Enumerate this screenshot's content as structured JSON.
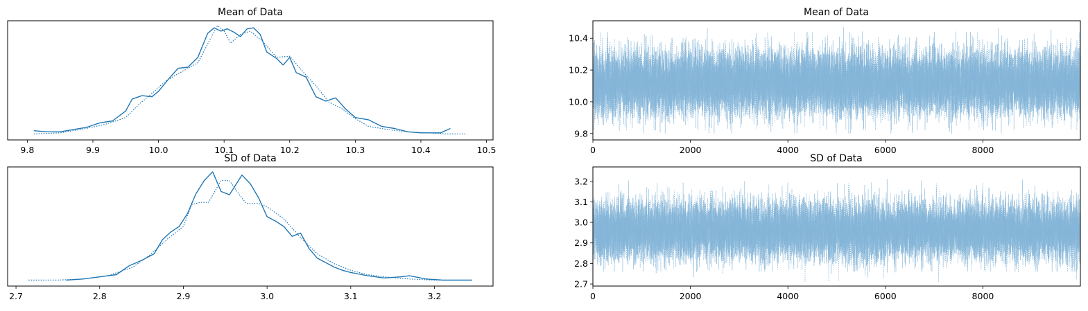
{
  "colors": {
    "kde": "#1f77b4",
    "trace": "#7fb1d6",
    "axis": "#000000"
  },
  "chart_data": [
    {
      "type": "line",
      "subtype": "density",
      "title": "Mean of Data",
      "xlim": [
        9.77,
        10.51
      ],
      "xticks": [
        "9.8",
        "9.9",
        "10.0",
        "10.1",
        "10.2",
        "10.3",
        "10.4",
        "10.5"
      ],
      "yticks": [],
      "series": [
        {
          "style": "solid",
          "x": [
            9.81,
            9.83,
            9.85,
            9.87,
            9.89,
            9.91,
            9.93,
            9.95,
            9.96,
            9.975,
            9.99,
            10.0,
            10.015,
            10.03,
            10.045,
            10.06,
            10.075,
            10.085,
            10.095,
            10.105,
            10.115,
            10.125,
            10.135,
            10.145,
            10.155,
            10.165,
            10.18,
            10.19,
            10.2,
            10.21,
            10.225,
            10.24,
            10.255,
            10.27,
            10.285,
            10.3,
            10.32,
            10.34,
            10.36,
            10.38,
            10.4,
            10.43,
            10.445
          ],
          "y": [
            0.04,
            0.03,
            0.03,
            0.05,
            0.07,
            0.11,
            0.13,
            0.22,
            0.33,
            0.36,
            0.35,
            0.4,
            0.51,
            0.61,
            0.62,
            0.71,
            0.93,
            0.98,
            0.95,
            0.97,
            0.94,
            0.9,
            0.97,
            0.98,
            0.92,
            0.76,
            0.7,
            0.64,
            0.71,
            0.57,
            0.53,
            0.35,
            0.31,
            0.34,
            0.24,
            0.16,
            0.14,
            0.08,
            0.06,
            0.03,
            0.02,
            0.02,
            0.06
          ]
        },
        {
          "style": "dotted",
          "x": [
            9.81,
            9.85,
            9.89,
            9.92,
            9.95,
            9.97,
            9.99,
            10.01,
            10.03,
            10.06,
            10.08,
            10.09,
            10.1,
            10.11,
            10.125,
            10.14,
            10.16,
            10.18,
            10.2,
            10.22,
            10.24,
            10.26,
            10.28,
            10.3,
            10.32,
            10.35,
            10.38,
            10.41,
            10.44,
            10.47
          ],
          "y": [
            0.01,
            0.02,
            0.06,
            0.1,
            0.16,
            0.28,
            0.38,
            0.49,
            0.56,
            0.66,
            0.89,
            1.0,
            0.95,
            0.84,
            0.92,
            0.95,
            0.85,
            0.71,
            0.72,
            0.58,
            0.45,
            0.3,
            0.24,
            0.15,
            0.08,
            0.05,
            0.03,
            0.02,
            0.01,
            0.01
          ]
        }
      ]
    },
    {
      "type": "line",
      "subtype": "trace",
      "title": "Mean of Data",
      "xlim": [
        0,
        9999
      ],
      "ylim": [
        9.76,
        10.51
      ],
      "xticks": [
        "0",
        "2000",
        "4000",
        "6000",
        "8000"
      ],
      "yticks": [
        "9.8",
        "10.0",
        "10.2",
        "10.4"
      ],
      "series": [
        {
          "style": "solid",
          "n": 10000,
          "mean": 10.12,
          "sd": 0.1,
          "min": 9.8,
          "max": 10.47
        },
        {
          "style": "dotted",
          "n": 10000,
          "mean": 10.12,
          "sd": 0.1,
          "min": 9.82,
          "max": 10.44
        }
      ]
    },
    {
      "type": "line",
      "subtype": "density",
      "title": "SD of Data",
      "xlim": [
        2.69,
        3.27
      ],
      "xticks": [
        "2.7",
        "2.8",
        "2.9",
        "3.0",
        "3.1",
        "3.2"
      ],
      "yticks": [],
      "series": [
        {
          "style": "solid",
          "x": [
            2.76,
            2.78,
            2.8,
            2.82,
            2.835,
            2.85,
            2.865,
            2.875,
            2.885,
            2.895,
            2.905,
            2.915,
            2.925,
            2.935,
            2.945,
            2.955,
            2.96,
            2.97,
            2.98,
            2.99,
            3.0,
            3.01,
            3.02,
            3.03,
            3.04,
            3.05,
            3.06,
            3.07,
            3.08,
            3.09,
            3.1,
            3.12,
            3.14,
            3.16,
            3.17,
            3.19,
            3.21,
            3.245
          ],
          "y": [
            0.01,
            0.02,
            0.04,
            0.06,
            0.14,
            0.19,
            0.25,
            0.38,
            0.45,
            0.5,
            0.62,
            0.8,
            0.92,
            1.0,
            0.82,
            0.79,
            0.85,
            0.97,
            0.89,
            0.76,
            0.59,
            0.55,
            0.5,
            0.41,
            0.44,
            0.3,
            0.21,
            0.17,
            0.13,
            0.1,
            0.08,
            0.05,
            0.03,
            0.04,
            0.05,
            0.02,
            0.01,
            0.01
          ]
        },
        {
          "style": "dotted",
          "x": [
            2.715,
            2.75,
            2.78,
            2.81,
            2.84,
            2.86,
            2.88,
            2.9,
            2.91,
            2.92,
            2.93,
            2.945,
            2.955,
            2.965,
            2.975,
            2.99,
            3.0,
            3.02,
            3.04,
            3.06,
            3.08,
            3.1,
            3.12,
            3.14,
            3.17,
            3.2,
            3.245
          ],
          "y": [
            0.01,
            0.01,
            0.02,
            0.05,
            0.13,
            0.24,
            0.38,
            0.5,
            0.7,
            0.72,
            0.72,
            0.92,
            0.92,
            0.81,
            0.71,
            0.71,
            0.68,
            0.57,
            0.4,
            0.25,
            0.16,
            0.1,
            0.06,
            0.04,
            0.02,
            0.01,
            0.01
          ]
        }
      ]
    },
    {
      "type": "line",
      "subtype": "trace",
      "title": "SD of Data",
      "xlim": [
        0,
        9999
      ],
      "ylim": [
        2.69,
        3.27
      ],
      "xticks": [
        "0",
        "2000",
        "4000",
        "6000",
        "8000"
      ],
      "yticks": [
        "2.7",
        "2.8",
        "2.9",
        "3.0",
        "3.1",
        "3.2"
      ],
      "series": [
        {
          "style": "solid",
          "n": 10000,
          "mean": 2.96,
          "sd": 0.07,
          "min": 2.76,
          "max": 3.24
        },
        {
          "style": "dotted",
          "n": 10000,
          "mean": 2.96,
          "sd": 0.07,
          "min": 2.71,
          "max": 3.21
        }
      ]
    }
  ]
}
